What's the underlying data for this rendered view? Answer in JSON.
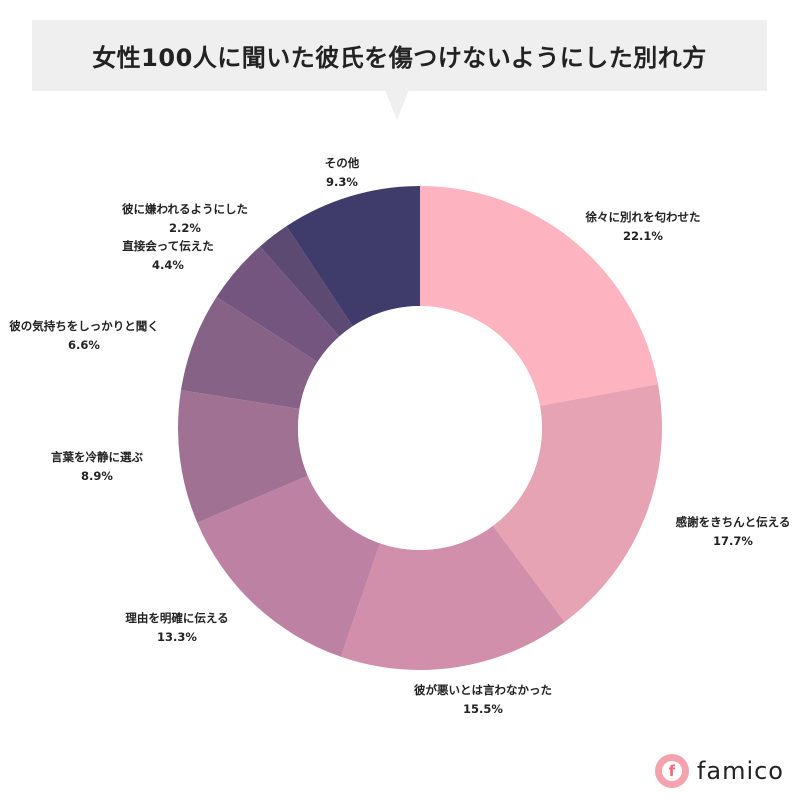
{
  "chart_data": {
    "type": "pie",
    "title": "女性100人に聞いた彼氏を傷つけないようにした別れ方",
    "slices": [
      {
        "label": "徐々に別れを匂わせた",
        "value": 22.1,
        "value_label": "22.1%",
        "color": "#fdb3c0"
      },
      {
        "label": "感謝をきちんと伝える",
        "value": 17.7,
        "value_label": "17.7%",
        "color": "#e6a3b3"
      },
      {
        "label": "彼が悪いとは言わなかった",
        "value": 15.5,
        "value_label": "15.5%",
        "color": "#d28fab"
      },
      {
        "label": "理由を明確に伝える",
        "value": 13.3,
        "value_label": "13.3%",
        "color": "#bd82a3"
      },
      {
        "label": "言葉を冷静に選ぶ",
        "value": 8.9,
        "value_label": "8.9%",
        "color": "#a17194"
      },
      {
        "label": "彼の気持ちをしっかりと聞く",
        "value": 6.6,
        "value_label": "6.6%",
        "color": "#876287"
      },
      {
        "label": "直接会って伝えた",
        "value": 4.4,
        "value_label": "4.4%",
        "color": "#735580"
      },
      {
        "label": "彼に嫌われるようにした",
        "value": 2.2,
        "value_label": "2.2%",
        "color": "#5c4a72"
      },
      {
        "label": "その他",
        "value": 9.3,
        "value_label": "9.3%",
        "color": "#3f3b6b"
      }
    ]
  },
  "brand": {
    "name": "famico",
    "icon_glyph": "f",
    "icon_color": "#f4a3ae"
  }
}
